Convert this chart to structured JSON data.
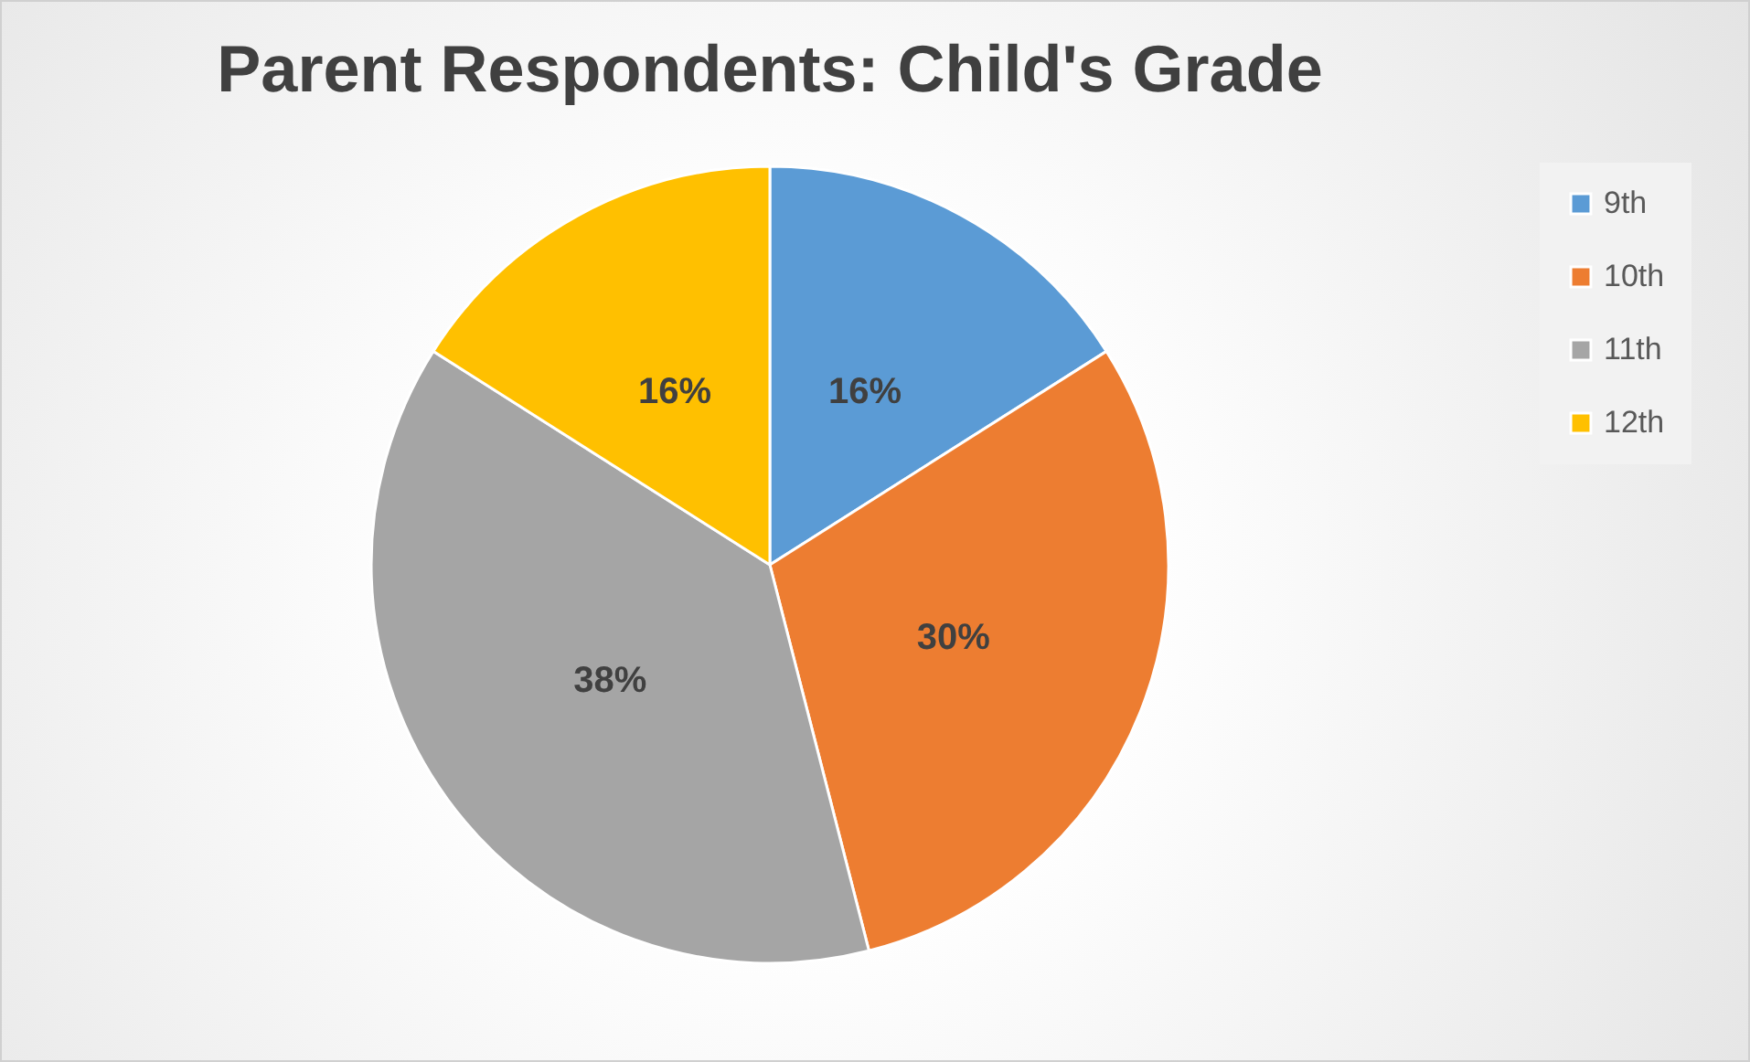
{
  "chart_data": {
    "type": "pie",
    "title": "Parent Respondents: Child's Grade",
    "categories": [
      "9th",
      "10th",
      "11th",
      "12th"
    ],
    "values": [
      16,
      30,
      38,
      16
    ],
    "colors": [
      "#5b9bd5",
      "#ed7d31",
      "#a5a5a5",
      "#ffc000"
    ],
    "value_labels": [
      "16%",
      "30%",
      "38%",
      "16%"
    ],
    "legend": "right"
  }
}
